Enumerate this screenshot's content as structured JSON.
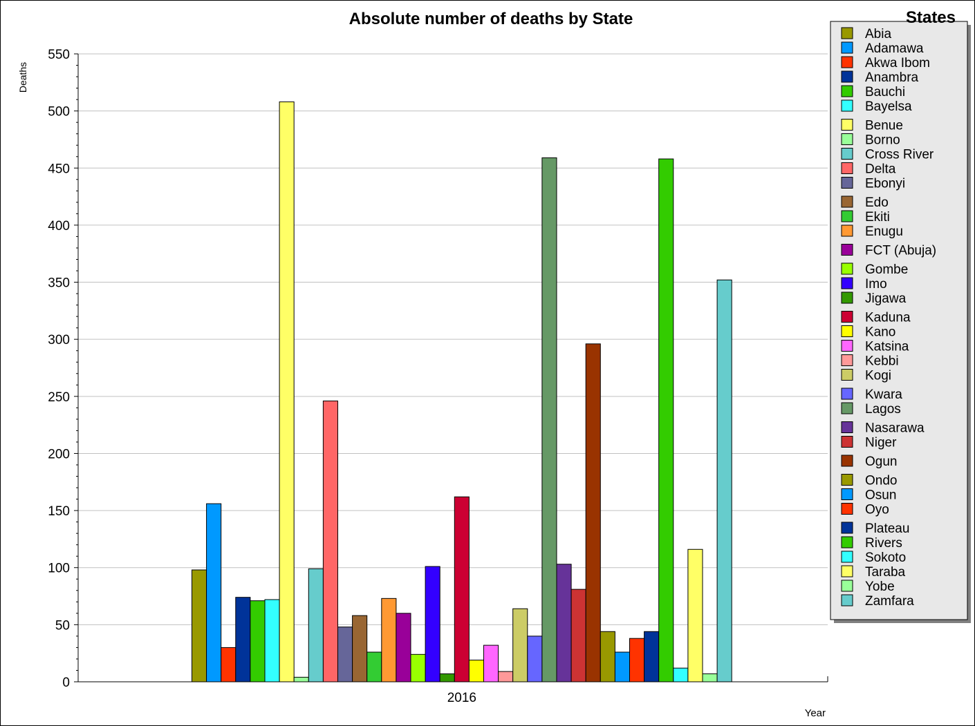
{
  "chart_data": {
    "type": "bar",
    "title": "Absolute number of deaths by State",
    "xlabel": "Year",
    "ylabel": "Deaths",
    "categories": [
      "2016"
    ],
    "ylim": [
      0,
      550
    ],
    "yticks": [
      0,
      50,
      100,
      150,
      200,
      250,
      300,
      350,
      400,
      450,
      500,
      550
    ],
    "grid": true,
    "legend_title": "States",
    "legend_position": "right",
    "series": [
      {
        "name": "Abia",
        "color": "#999900",
        "values": [
          98
        ]
      },
      {
        "name": "Adamawa",
        "color": "#0099ff",
        "values": [
          156
        ]
      },
      {
        "name": "Akwa Ibom",
        "color": "#ff3300",
        "values": [
          30
        ]
      },
      {
        "name": "Anambra",
        "color": "#003399",
        "values": [
          74
        ]
      },
      {
        "name": "Bauchi",
        "color": "#33cc00",
        "values": [
          71
        ]
      },
      {
        "name": "Bayelsa",
        "color": "#33ffff",
        "values": [
          72
        ]
      },
      {
        "name": "Benue",
        "color": "#ffff66",
        "values": [
          508
        ]
      },
      {
        "name": "Borno",
        "color": "#99ff99",
        "values": [
          4
        ]
      },
      {
        "name": "Cross River",
        "color": "#66cccc",
        "values": [
          99
        ]
      },
      {
        "name": "Delta",
        "color": "#ff6666",
        "values": [
          246
        ]
      },
      {
        "name": "Ebonyi",
        "color": "#666699",
        "values": [
          48
        ]
      },
      {
        "name": "Edo",
        "color": "#996633",
        "values": [
          58
        ]
      },
      {
        "name": "Ekiti",
        "color": "#33cc33",
        "values": [
          26
        ]
      },
      {
        "name": "Enugu",
        "color": "#ff9933",
        "values": [
          73
        ]
      },
      {
        "name": "FCT (Abuja)",
        "color": "#990099",
        "values": [
          60
        ]
      },
      {
        "name": "Gombe",
        "color": "#99ff00",
        "values": [
          24
        ]
      },
      {
        "name": "Imo",
        "color": "#3300ff",
        "values": [
          101
        ]
      },
      {
        "name": "Jigawa",
        "color": "#339900",
        "values": [
          7
        ]
      },
      {
        "name": "Kaduna",
        "color": "#cc0033",
        "values": [
          162
        ]
      },
      {
        "name": "Kano",
        "color": "#ffff00",
        "values": [
          19
        ]
      },
      {
        "name": "Katsina",
        "color": "#ff66ff",
        "values": [
          32
        ]
      },
      {
        "name": "Kebbi",
        "color": "#ff9999",
        "values": [
          9
        ]
      },
      {
        "name": "Kogi",
        "color": "#cccc66",
        "values": [
          64
        ]
      },
      {
        "name": "Kwara",
        "color": "#6666ff",
        "values": [
          40
        ]
      },
      {
        "name": "Lagos",
        "color": "#669966",
        "values": [
          459
        ]
      },
      {
        "name": "Nasarawa",
        "color": "#663399",
        "values": [
          103
        ]
      },
      {
        "name": "Niger",
        "color": "#cc3333",
        "values": [
          81
        ]
      },
      {
        "name": "Ogun",
        "color": "#993300",
        "values": [
          296
        ]
      },
      {
        "name": "Ondo",
        "color": "#999900",
        "values": [
          44
        ]
      },
      {
        "name": "Osun",
        "color": "#0099ff",
        "values": [
          26
        ]
      },
      {
        "name": "Oyo",
        "color": "#ff3300",
        "values": [
          38
        ]
      },
      {
        "name": "Plateau",
        "color": "#003399",
        "values": [
          44
        ]
      },
      {
        "name": "Rivers",
        "color": "#33cc00",
        "values": [
          458
        ]
      },
      {
        "name": "Sokoto",
        "color": "#33ffff",
        "values": [
          12
        ]
      },
      {
        "name": "Taraba",
        "color": "#ffff66",
        "values": [
          116
        ]
      },
      {
        "name": "Yobe",
        "color": "#99ff99",
        "values": [
          7
        ]
      },
      {
        "name": "Zamfara",
        "color": "#66cccc",
        "values": [
          352
        ]
      }
    ]
  }
}
